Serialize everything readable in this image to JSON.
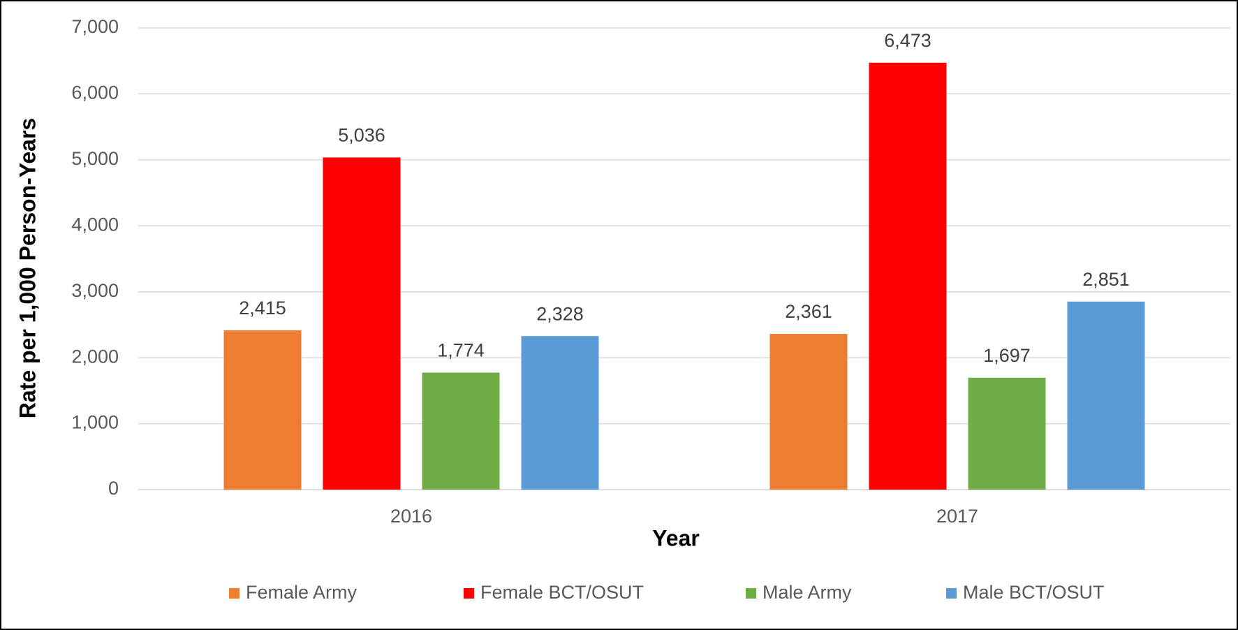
{
  "chart_data": {
    "type": "bar",
    "x_label": "Year",
    "y_label": "Rate per 1,000 Person-Years",
    "categories": [
      "2016",
      "2017"
    ],
    "series": [
      {
        "name": "Female Army",
        "color": "#ed7d31",
        "values": [
          2415,
          2361
        ],
        "value_labels": [
          "2,415",
          "2,361"
        ]
      },
      {
        "name": "Female BCT/OSUT",
        "color": "#ff0000",
        "values": [
          5036,
          6473
        ],
        "value_labels": [
          "5,036",
          "6,473"
        ]
      },
      {
        "name": "Male Army",
        "color": "#70ad47",
        "values": [
          1774,
          1697
        ],
        "value_labels": [
          "1,774",
          "1,697"
        ]
      },
      {
        "name": "Male BCT/OSUT",
        "color": "#5b9bd5",
        "values": [
          2328,
          2851
        ],
        "value_labels": [
          "2,328",
          "2,851"
        ]
      }
    ],
    "ylim": [
      0,
      7000
    ],
    "yticks": [
      0,
      {
        "value": 1000,
        "label": "1,000"
      },
      {
        "value": 2000,
        "label": "2,000"
      },
      {
        "value": 3000,
        "label": "3,000"
      },
      {
        "value": 4000,
        "label": "4,000"
      },
      {
        "value": 5000,
        "label": "5,000"
      },
      {
        "value": 6000,
        "label": "6,000"
      },
      {
        "value": 7000,
        "label": "7,000"
      }
    ],
    "grid": true,
    "legend": "bottom"
  }
}
